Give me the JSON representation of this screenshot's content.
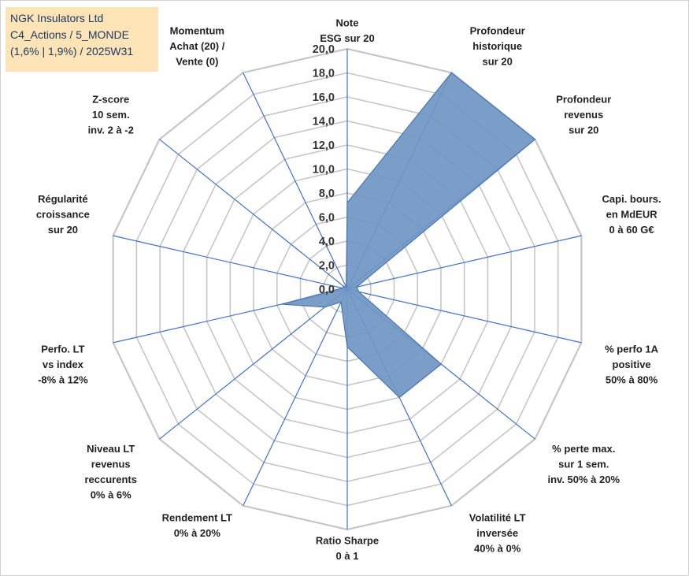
{
  "title_box": {
    "line1": "NGK Insulators Ltd",
    "line2": "C4_Actions / 5_MONDE",
    "line3": "(1,6% | 1,9%) / 2025W31"
  },
  "chart_data": {
    "type": "radar",
    "title": "",
    "rmin": 0,
    "rmax": 20,
    "tick_step": 2,
    "tick_labels": [
      "0,0",
      "2,0",
      "4,0",
      "6,0",
      "8,0",
      "10,0",
      "12,0",
      "14,0",
      "16,0",
      "18,0",
      "20,0"
    ],
    "grid": true,
    "legend": "none",
    "colors": {
      "fill": "#7096c4",
      "stroke": "#4a76b0",
      "grid": "#c6c6c6",
      "spoke": "#4472c4"
    },
    "axes": [
      {
        "lines": [
          "Note",
          "ESG sur 20"
        ]
      },
      {
        "lines": [
          "Profondeur",
          "historique",
          "sur 20"
        ]
      },
      {
        "lines": [
          "Profondeur",
          "revenus",
          "sur 20"
        ]
      },
      {
        "lines": [
          "Capi. bours.",
          "en MdEUR",
          "0 à 60 G€"
        ]
      },
      {
        "lines": [
          "% perfo 1A",
          "positive",
          "50% à 80%"
        ]
      },
      {
        "lines": [
          "% perte max.",
          "sur 1 sem.",
          "inv. 50% à 20%"
        ]
      },
      {
        "lines": [
          "Volatilité LT",
          "inversée",
          "40% à 0%"
        ]
      },
      {
        "lines": [
          "Ratio Sharpe",
          "0 à 1"
        ]
      },
      {
        "lines": [
          "Rendement LT",
          "0% à 20%"
        ]
      },
      {
        "lines": [
          "Niveau LT",
          "revenus",
          "reccurents",
          "0% à 6%"
        ]
      },
      {
        "lines": [
          "Perfo. LT",
          "vs index",
          "-8% à 12%"
        ]
      },
      {
        "lines": [
          "Régularité",
          "croissance",
          "sur 20"
        ]
      },
      {
        "lines": [
          "Z-score",
          "10 sem.",
          "inv. 2 à -2"
        ]
      },
      {
        "lines": [
          "Momentum",
          "Achat (20) /",
          "Vente (0)"
        ]
      }
    ],
    "series": [
      {
        "values": [
          7.2,
          20.0,
          20.0,
          0.8,
          1.0,
          10.0,
          10.0,
          4.8,
          1.2,
          2.4,
          5.6,
          0.4,
          0.4,
          0.2
        ]
      }
    ]
  }
}
